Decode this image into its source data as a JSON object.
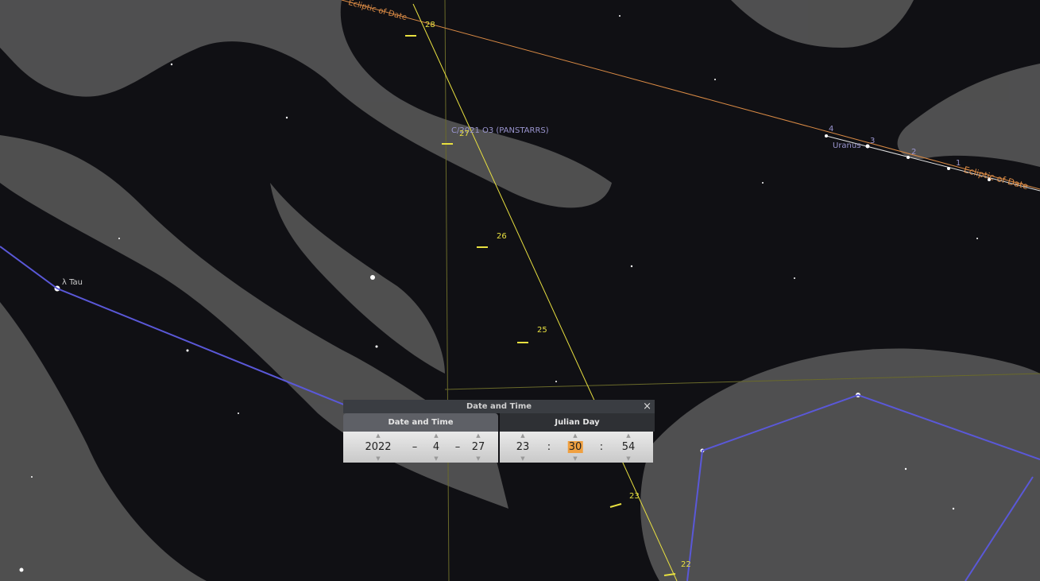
{
  "sky": {
    "ecliptic_labels": [
      "Ecliptic of Date",
      "Ecliptic of Date"
    ],
    "comet_name": "C/2021 O3 (PANSTARRS)",
    "comet_dates": [
      "28",
      "27",
      "26",
      "25",
      "23",
      "22"
    ],
    "star_label": "λ Tau",
    "planet_name": "Uranus",
    "planet_dates": [
      "4",
      "3",
      "2",
      "1"
    ]
  },
  "dialog": {
    "title": "Date and Time",
    "tabs": [
      "Date and Time",
      "Julian Day"
    ],
    "date": {
      "year": "2022",
      "sep1": "–",
      "month": "4",
      "sep2": "–",
      "day": "27"
    },
    "time": {
      "hour": "23",
      "sep1": ":",
      "minute": "30",
      "sep2": ":",
      "second": "54"
    }
  }
}
